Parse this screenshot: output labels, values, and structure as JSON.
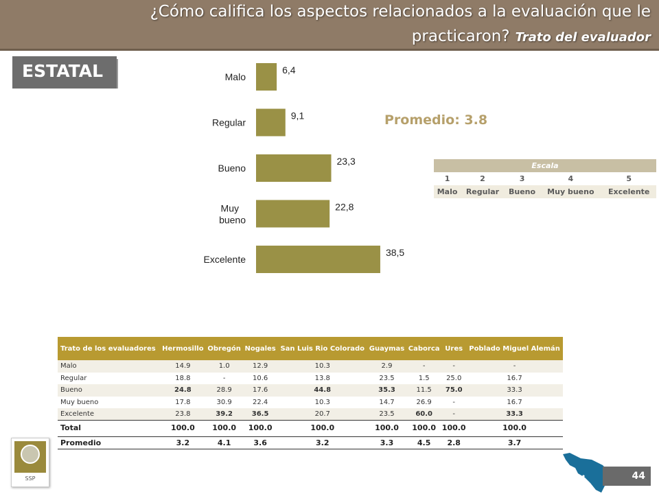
{
  "header": {
    "line1": "¿Cómo califica los aspectos relacionados a la evaluación que le",
    "line2": "practicaron?",
    "subtitle": "Trato del evaluador"
  },
  "region": "ESTATAL",
  "promedio_label": "Promedio: 3.8",
  "chart_data": {
    "type": "bar",
    "orientation": "horizontal",
    "categories": [
      "Malo",
      "Regular",
      "Bueno",
      "Muy bueno",
      "Excelente"
    ],
    "values": [
      6.4,
      9.1,
      23.3,
      22.8,
      38.5
    ],
    "value_labels": [
      "6,4",
      "9,1",
      "23,3",
      "22,8",
      "38,5"
    ],
    "bar_color": "#9a9146",
    "xlim": [
      0,
      40
    ],
    "grid": false,
    "legend": "none"
  },
  "scale": {
    "title": "Escala",
    "numbers": [
      "1",
      "2",
      "3",
      "4",
      "5"
    ],
    "labels": [
      "Malo",
      "Regular",
      "Bueno",
      "Muy bueno",
      "Excelente"
    ]
  },
  "table": {
    "corner": "Trato de los evaluadores",
    "columns": [
      "Hermosillo",
      "Obregón",
      "Nogales",
      "San Luis Rio Colorado",
      "Guaymas",
      "Caborca",
      "Ures",
      "Poblado Miguel Alemán"
    ],
    "rows": [
      {
        "label": "Malo",
        "values": [
          "14.9",
          "1.0",
          "12.9",
          "10.3",
          "2.9",
          "-",
          "-",
          "-"
        ],
        "bold": [
          false,
          false,
          false,
          false,
          false,
          false,
          false,
          false
        ]
      },
      {
        "label": "Regular",
        "values": [
          "18.8",
          "-",
          "10.6",
          "13.8",
          "23.5",
          "1.5",
          "25.0",
          "16.7"
        ],
        "bold": [
          false,
          false,
          false,
          false,
          false,
          false,
          false,
          false
        ]
      },
      {
        "label": "Bueno",
        "values": [
          "24.8",
          "28.9",
          "17.6",
          "44.8",
          "35.3",
          "11.5",
          "75.0",
          "33.3"
        ],
        "bold": [
          true,
          false,
          false,
          true,
          true,
          false,
          true,
          false
        ]
      },
      {
        "label": "Muy bueno",
        "values": [
          "17.8",
          "30.9",
          "22.4",
          "10.3",
          "14.7",
          "26.9",
          "-",
          "16.7"
        ],
        "bold": [
          false,
          false,
          false,
          false,
          false,
          false,
          false,
          false
        ]
      },
      {
        "label": "Excelente",
        "values": [
          "23.8",
          "39.2",
          "36.5",
          "20.7",
          "23.5",
          "60.0",
          "-",
          "33.3"
        ],
        "bold": [
          false,
          true,
          true,
          false,
          false,
          true,
          false,
          true
        ]
      }
    ],
    "total": {
      "label": "Total",
      "values": [
        "100.0",
        "100.0",
        "100.0",
        "100.0",
        "100.0",
        "100.0",
        "100.0",
        "100.0"
      ]
    },
    "promedio": {
      "label": "Promedio",
      "values": [
        "3.2",
        "4.1",
        "3.6",
        "3.2",
        "3.3",
        "4.5",
        "2.8",
        "3.7"
      ]
    }
  },
  "logo_text": "SSP",
  "page_number": "44",
  "icons": {
    "logo": "seal-logo-icon",
    "map": "sonora-map-icon"
  },
  "colors": {
    "header": "#8f7b67",
    "table_header": "#b89a31",
    "promedio": "#b6a06b",
    "map": "#1a6f9a"
  }
}
